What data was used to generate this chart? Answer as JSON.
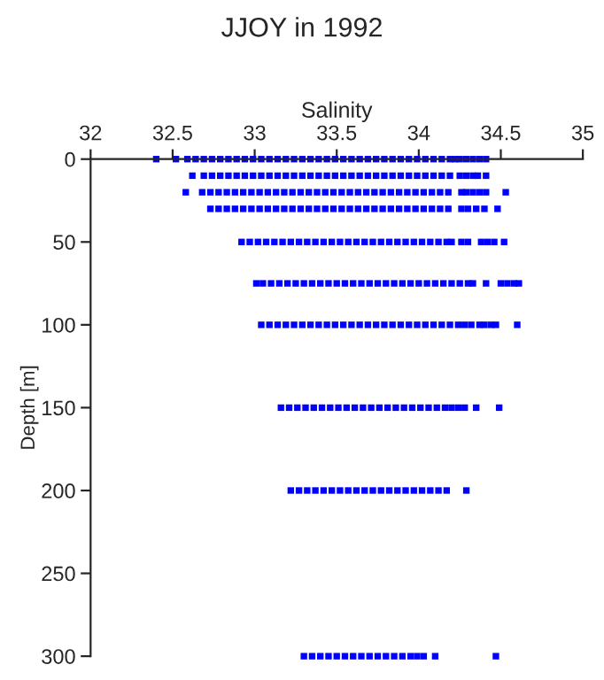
{
  "chart_data": {
    "type": "scatter",
    "title": "JJOY in 1992",
    "xlabel": "Salinity",
    "ylabel": "Depth [m]",
    "xlim": [
      32,
      35
    ],
    "xticks": [
      32,
      32.5,
      33,
      33.5,
      34,
      34.5,
      35
    ],
    "ylim": [
      300,
      0
    ],
    "yticks": [
      0,
      50,
      100,
      150,
      200,
      250,
      300
    ],
    "marker": "square",
    "series": [
      {
        "color": "#0000ff",
        "x": [
          32.4,
          32.52,
          32.59,
          32.64,
          32.69,
          32.74,
          32.79,
          32.84,
          32.89,
          32.94,
          32.99,
          33.04,
          33.09,
          33.14,
          33.19,
          33.24,
          33.29,
          33.34,
          33.39,
          33.44,
          33.49,
          33.54,
          33.59,
          33.64,
          33.69,
          33.74,
          33.79,
          33.84,
          33.89,
          33.94,
          33.99,
          34.04,
          34.09,
          34.14,
          34.19,
          34.22,
          34.25,
          34.29,
          34.33,
          34.37,
          34.41
        ],
        "values": [
          0,
          0,
          0,
          0,
          0,
          0,
          0,
          0,
          0,
          0,
          0,
          0,
          0,
          0,
          0,
          0,
          0,
          0,
          0,
          0,
          0,
          0,
          0,
          0,
          0,
          0,
          0,
          0,
          0,
          0,
          0,
          0,
          0,
          0,
          0,
          0,
          0,
          0,
          0,
          0,
          0
        ]
      },
      {
        "color": "#0000ff",
        "x": [
          32.62,
          32.69,
          32.74,
          32.79,
          32.84,
          32.89,
          32.94,
          32.99,
          33.04,
          33.09,
          33.14,
          33.19,
          33.24,
          33.29,
          33.34,
          33.39,
          33.44,
          33.49,
          33.54,
          33.59,
          33.64,
          33.69,
          33.74,
          33.79,
          33.84,
          33.89,
          33.94,
          33.99,
          34.04,
          34.09,
          34.14,
          34.19,
          34.25,
          34.29,
          34.33,
          34.36,
          34.41
        ],
        "values": [
          10,
          10,
          10,
          10,
          10,
          10,
          10,
          10,
          10,
          10,
          10,
          10,
          10,
          10,
          10,
          10,
          10,
          10,
          10,
          10,
          10,
          10,
          10,
          10,
          10,
          10,
          10,
          10,
          10,
          10,
          10,
          10,
          10,
          10,
          10,
          10,
          10
        ]
      },
      {
        "color": "#0000ff",
        "x": [
          32.58,
          32.68,
          32.73,
          32.78,
          32.83,
          32.88,
          32.93,
          32.98,
          33.03,
          33.08,
          33.13,
          33.18,
          33.23,
          33.28,
          33.33,
          33.38,
          33.43,
          33.48,
          33.53,
          33.58,
          33.63,
          33.68,
          33.73,
          33.78,
          33.83,
          33.88,
          33.93,
          33.98,
          34.03,
          34.08,
          34.13,
          34.18,
          34.26,
          34.29,
          34.33,
          34.37,
          34.41,
          34.53
        ],
        "values": [
          20,
          20,
          20,
          20,
          20,
          20,
          20,
          20,
          20,
          20,
          20,
          20,
          20,
          20,
          20,
          20,
          20,
          20,
          20,
          20,
          20,
          20,
          20,
          20,
          20,
          20,
          20,
          20,
          20,
          20,
          20,
          20,
          20,
          20,
          20,
          20,
          20,
          20
        ]
      },
      {
        "color": "#0000ff",
        "x": [
          32.73,
          32.78,
          32.83,
          32.88,
          32.93,
          32.98,
          33.03,
          33.08,
          33.13,
          33.18,
          33.23,
          33.28,
          33.33,
          33.38,
          33.43,
          33.48,
          33.53,
          33.58,
          33.63,
          33.68,
          33.73,
          33.78,
          33.83,
          33.88,
          33.93,
          33.98,
          34.03,
          34.08,
          34.13,
          34.18,
          34.26,
          34.3,
          34.35,
          34.4,
          34.48
        ],
        "values": [
          30,
          30,
          30,
          30,
          30,
          30,
          30,
          30,
          30,
          30,
          30,
          30,
          30,
          30,
          30,
          30,
          30,
          30,
          30,
          30,
          30,
          30,
          30,
          30,
          30,
          30,
          30,
          30,
          30,
          30,
          30,
          30,
          30,
          30,
          30
        ]
      },
      {
        "color": "#0000ff",
        "x": [
          32.92,
          32.97,
          33.02,
          33.07,
          33.12,
          33.17,
          33.22,
          33.27,
          33.32,
          33.37,
          33.42,
          33.47,
          33.52,
          33.57,
          33.62,
          33.67,
          33.72,
          33.77,
          33.82,
          33.87,
          33.92,
          33.97,
          34.02,
          34.07,
          34.12,
          34.17,
          34.2,
          34.26,
          34.3,
          34.38,
          34.42,
          34.46,
          34.52
        ],
        "values": [
          50,
          50,
          50,
          50,
          50,
          50,
          50,
          50,
          50,
          50,
          50,
          50,
          50,
          50,
          50,
          50,
          50,
          50,
          50,
          50,
          50,
          50,
          50,
          50,
          50,
          50,
          50,
          50,
          50,
          50,
          50,
          50,
          50
        ]
      },
      {
        "color": "#0000ff",
        "x": [
          33.01,
          33.05,
          33.1,
          33.15,
          33.2,
          33.25,
          33.3,
          33.35,
          33.4,
          33.45,
          33.5,
          33.55,
          33.6,
          33.65,
          33.7,
          33.75,
          33.8,
          33.85,
          33.9,
          33.95,
          34.0,
          34.05,
          34.1,
          34.15,
          34.2,
          34.25,
          34.3,
          34.33,
          34.41,
          34.5,
          34.54,
          34.58,
          34.61
        ],
        "values": [
          75,
          75,
          75,
          75,
          75,
          75,
          75,
          75,
          75,
          75,
          75,
          75,
          75,
          75,
          75,
          75,
          75,
          75,
          75,
          75,
          75,
          75,
          75,
          75,
          75,
          75,
          75,
          75,
          75,
          75,
          75,
          75,
          75
        ]
      },
      {
        "color": "#0000ff",
        "x": [
          33.04,
          33.09,
          33.14,
          33.19,
          33.24,
          33.29,
          33.34,
          33.39,
          33.44,
          33.49,
          33.54,
          33.59,
          33.64,
          33.69,
          33.74,
          33.79,
          33.84,
          33.89,
          33.94,
          33.99,
          34.04,
          34.09,
          34.14,
          34.19,
          34.24,
          34.28,
          34.32,
          34.37,
          34.4,
          34.44,
          34.47,
          34.6
        ],
        "values": [
          100,
          100,
          100,
          100,
          100,
          100,
          100,
          100,
          100,
          100,
          100,
          100,
          100,
          100,
          100,
          100,
          100,
          100,
          100,
          100,
          100,
          100,
          100,
          100,
          100,
          100,
          100,
          100,
          100,
          100,
          100,
          100
        ]
      },
      {
        "color": "#0000ff",
        "x": [
          33.16,
          33.21,
          33.26,
          33.31,
          33.36,
          33.41,
          33.46,
          33.51,
          33.56,
          33.61,
          33.66,
          33.71,
          33.76,
          33.81,
          33.86,
          33.91,
          33.96,
          34.01,
          34.06,
          34.11,
          34.16,
          34.2,
          34.24,
          34.28,
          34.35,
          34.49
        ],
        "values": [
          150,
          150,
          150,
          150,
          150,
          150,
          150,
          150,
          150,
          150,
          150,
          150,
          150,
          150,
          150,
          150,
          150,
          150,
          150,
          150,
          150,
          150,
          150,
          150,
          150,
          150
        ]
      },
      {
        "color": "#0000ff",
        "x": [
          33.22,
          33.27,
          33.32,
          33.37,
          33.42,
          33.47,
          33.52,
          33.57,
          33.62,
          33.67,
          33.72,
          33.77,
          33.82,
          33.87,
          33.92,
          33.97,
          34.02,
          34.07,
          34.12,
          34.17,
          34.29
        ],
        "values": [
          200,
          200,
          200,
          200,
          200,
          200,
          200,
          200,
          200,
          200,
          200,
          200,
          200,
          200,
          200,
          200,
          200,
          200,
          200,
          200,
          200
        ]
      },
      {
        "color": "#0000ff",
        "x": [
          33.3,
          33.35,
          33.4,
          33.45,
          33.5,
          33.55,
          33.6,
          33.65,
          33.7,
          33.75,
          33.8,
          33.85,
          33.9,
          33.95,
          33.99,
          34.03,
          34.1,
          34.47
        ],
        "values": [
          300,
          300,
          300,
          300,
          300,
          300,
          300,
          300,
          300,
          300,
          300,
          300,
          300,
          300,
          300,
          300,
          300,
          300
        ]
      }
    ]
  }
}
